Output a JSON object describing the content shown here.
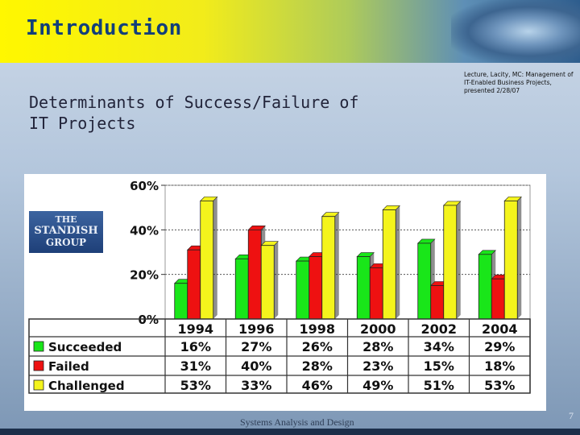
{
  "slide": {
    "title": "Introduction",
    "subtitle": "Determinants of Success/Failure of IT Projects",
    "reference": "Lecture, Lacity, MC: Management of IT-Enabled Business Projects, presented 2/28/07",
    "logo": {
      "line1": "THE",
      "line2": "STANDISH",
      "line3": "GROUP"
    },
    "footer": "Systems Analysis and Design",
    "page_number": "7",
    "colors": {
      "title_bar": "#f6ee12",
      "title_text": "#123f7a",
      "background": "#b3c6dc"
    }
  },
  "chart_data": {
    "type": "bar",
    "categories": [
      "1994",
      "1996",
      "1998",
      "2000",
      "2002",
      "2004"
    ],
    "series": [
      {
        "name": "Succeeded",
        "color": "#19e619",
        "values": [
          16,
          27,
          26,
          28,
          34,
          29
        ],
        "labels": [
          "16%",
          "27%",
          "26%",
          "28%",
          "34%",
          "29%"
        ]
      },
      {
        "name": "Failed",
        "color": "#ee1111",
        "values": [
          31,
          40,
          28,
          23,
          15,
          18
        ],
        "labels": [
          "31%",
          "40%",
          "28%",
          "23%",
          "15%",
          "18%"
        ]
      },
      {
        "name": "Challenged",
        "color": "#f4f41c",
        "values": [
          53,
          33,
          46,
          49,
          51,
          53
        ],
        "labels": [
          "53%",
          "33%",
          "46%",
          "49%",
          "51%",
          "53%"
        ]
      }
    ],
    "yticks": [
      "0%",
      "20%",
      "40%",
      "60%"
    ],
    "ytick_values": [
      0,
      20,
      40,
      60
    ],
    "ylim": [
      0,
      60
    ],
    "grid": true,
    "data_table": true,
    "legend": "in data table"
  }
}
